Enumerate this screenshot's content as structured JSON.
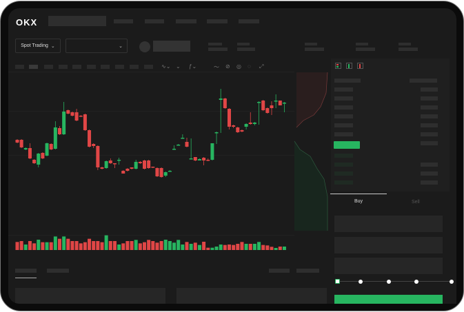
{
  "brand": {
    "logo": "OKX"
  },
  "toolbar": {
    "market_type": "Spot Trading",
    "pair_dropdown": ""
  },
  "orderbook": {
    "view_icons": [
      "orderbook-both-icon",
      "orderbook-buy-icon",
      "orderbook-sell-icon"
    ]
  },
  "order_form": {
    "tabs": [
      {
        "label": "Buy",
        "active": true
      },
      {
        "label": "Sell",
        "active": false
      }
    ],
    "slider_value_percent": 0
  },
  "colors": {
    "up": "#27b560",
    "down": "#e04646",
    "background": "#1b1b1b"
  },
  "candles": {
    "open": [
      97,
      97,
      83,
      85,
      68,
      61,
      78,
      74,
      91,
      84,
      114,
      105,
      140,
      137,
      137,
      132,
      134,
      111,
      91,
      88,
      57,
      56,
      67,
      63,
      68,
      52,
      55,
      57,
      55,
      65,
      67,
      67,
      58,
      56,
      56,
      45,
      52,
      84,
      90,
      99,
      94,
      69,
      72,
      67,
      71,
      68,
      68,
      108,
      155,
      157,
      142,
      118,
      115,
      111,
      116,
      122,
      120,
      152,
      154,
      143,
      147,
      154,
      154,
      151
    ],
    "close": [
      93,
      86,
      85,
      70,
      63,
      77,
      70,
      92,
      83,
      115,
      105,
      138,
      135,
      132,
      125,
      131,
      111,
      87,
      88,
      57,
      55,
      66,
      63,
      62,
      68,
      48,
      52,
      55,
      65,
      63,
      55,
      56,
      57,
      44,
      43,
      50,
      52,
      84,
      90,
      100,
      87,
      70,
      67,
      69,
      67,
      67,
      92,
      108,
      157,
      143,
      116,
      116,
      108,
      109,
      120,
      120,
      122,
      152,
      140,
      136,
      143,
      154,
      147,
      151
    ],
    "high": [
      98,
      98,
      86,
      92,
      69,
      78,
      79,
      93,
      92,
      124,
      117,
      152,
      141,
      138,
      142,
      133,
      135,
      112,
      92,
      89,
      58,
      67,
      70,
      63,
      71,
      53,
      56,
      57,
      68,
      66,
      68,
      68,
      58,
      57,
      57,
      51,
      53,
      89,
      91,
      105,
      100,
      99,
      70,
      70,
      72,
      70,
      74,
      109,
      171,
      158,
      143,
      119,
      116,
      112,
      121,
      137,
      123,
      153,
      155,
      144,
      153,
      163,
      154,
      152
    ],
    "low": [
      92,
      85,
      82,
      69,
      62,
      57,
      69,
      73,
      82,
      83,
      104,
      104,
      134,
      131,
      124,
      130,
      110,
      86,
      85,
      53,
      54,
      55,
      62,
      56,
      61,
      48,
      51,
      54,
      54,
      62,
      54,
      55,
      56,
      43,
      42,
      43,
      51,
      83,
      89,
      99,
      86,
      69,
      66,
      68,
      60,
      66,
      67,
      91,
      107,
      142,
      112,
      114,
      107,
      108,
      112,
      119,
      118,
      119,
      139,
      135,
      133,
      143,
      147,
      137
    ]
  },
  "volume": [
    35,
    39,
    24,
    39,
    29,
    45,
    34,
    34,
    34,
    59,
    49,
    59,
    49,
    39,
    39,
    29,
    34,
    49,
    39,
    39,
    34,
    64,
    39,
    39,
    24,
    29,
    39,
    39,
    44,
    29,
    34,
    44,
    39,
    32,
    39,
    45,
    39,
    32,
    44,
    24,
    35,
    27,
    32,
    22,
    36,
    10,
    10,
    15,
    24,
    22,
    24,
    22,
    27,
    35,
    27,
    27,
    27,
    35,
    22,
    20,
    14,
    9,
    15,
    15
  ]
}
